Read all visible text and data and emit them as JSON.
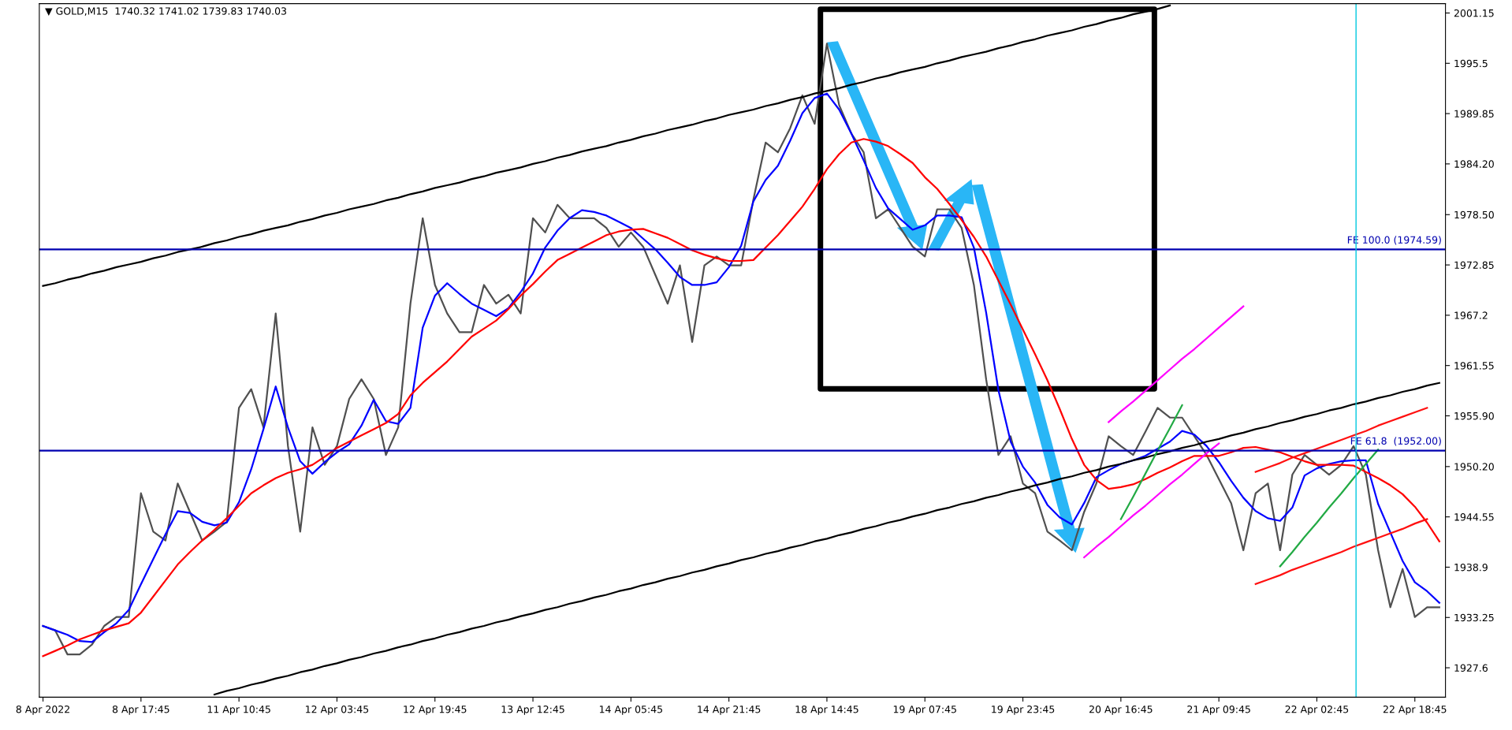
{
  "chart_data": {
    "type": "line",
    "title": "▼ GOLD,M15  1740.32 1741.02 1739.83 1740.03",
    "categories": [
      "8 Apr 2022",
      null,
      null,
      null,
      null,
      null,
      null,
      null,
      "8 Apr 17:45",
      null,
      null,
      null,
      null,
      null,
      null,
      null,
      "11 Apr 10:45",
      null,
      null,
      null,
      null,
      null,
      null,
      null,
      "12 Apr 03:45",
      null,
      null,
      null,
      null,
      null,
      null,
      null,
      "12 Apr 19:45",
      null,
      null,
      null,
      null,
      null,
      null,
      null,
      "13 Apr 12:45",
      null,
      null,
      null,
      null,
      null,
      null,
      null,
      "14 Apr 05:45",
      null,
      null,
      null,
      null,
      null,
      null,
      null,
      "14 Apr 21:45",
      null,
      null,
      null,
      null,
      null,
      null,
      null,
      "18 Apr 14:45",
      null,
      null,
      null,
      null,
      null,
      null,
      null,
      "19 Apr 07:45",
      null,
      null,
      null,
      null,
      null,
      null,
      null,
      "19 Apr 23:45",
      null,
      null,
      null,
      null,
      null,
      null,
      null,
      "20 Apr 16:45",
      null,
      null,
      null,
      null,
      null,
      null,
      null,
      "21 Apr 09:45",
      null,
      null,
      null,
      null,
      null,
      null,
      null,
      "22 Apr 02:45",
      null,
      null,
      null,
      null,
      null,
      null,
      null,
      "22 Apr 18:45",
      null,
      null
    ],
    "ylim": [
      1924.3,
      2002.2
    ],
    "yticks": [
      1927.6,
      1933.25,
      1938.9,
      1944.55,
      {
        "value": 1950.2,
        "label": "1950.20"
      },
      {
        "value": 1955.9,
        "label": "1955.90"
      },
      1961.55,
      1967.2,
      1972.85,
      {
        "value": 1978.5,
        "label": "1978.50"
      },
      {
        "value": 1984.2,
        "label": "1984.20"
      },
      1989.85,
      1995.5,
      2001.15
    ],
    "grid": false,
    "ref_lines": [
      {
        "axis": "y",
        "value": 1974.59,
        "label": "FE 100.0 (1974.59)",
        "color": "#0000b0"
      },
      {
        "axis": "y",
        "value": 1952.0,
        "label": "FE 61.8  (1952.00)",
        "color": "#0000b0"
      }
    ],
    "series": [
      {
        "color": "#505050",
        "values": [
          1932.3,
          1931.8,
          1929.1,
          1929.1,
          1930.2,
          1932.3,
          1933.3,
          1933.3,
          1947.2,
          1942.9,
          1941.9,
          1948.3,
          1945.1,
          1941.9,
          1942.9,
          1944.0,
          1956.8,
          1958.9,
          1954.6,
          1967.4,
          1952.5,
          1942.9,
          1954.6,
          1950.4,
          1952.5,
          1957.8,
          1960.0,
          1957.8,
          1951.5,
          1954.6,
          1968.5,
          1978.1,
          1970.6,
          1967.4,
          1965.3,
          1965.3,
          1970.6,
          1968.5,
          1969.5,
          1967.4,
          1978.1,
          1976.5,
          1979.6,
          1978.1,
          1978.1,
          1978.1,
          1977.0,
          1974.9,
          1976.5,
          1974.9,
          1971.7,
          1968.5,
          1972.8,
          1964.2,
          1972.8,
          1973.8,
          1972.8,
          1972.8,
          1980.2,
          1986.6,
          1985.5,
          1988.2,
          1991.9,
          1988.7,
          1997.7,
          1990.8,
          1987.6,
          1985.5,
          1978.1,
          1979.1,
          1977.0,
          1974.9,
          1973.8,
          1979.1,
          1979.1,
          1977.0,
          1970.6,
          1960.0,
          1951.5,
          1953.6,
          1948.3,
          1947.2,
          1942.9,
          1941.9,
          1940.8,
          1945.1,
          1948.3,
          1953.6,
          1952.5,
          1951.5,
          1954.1,
          1956.8,
          1955.7,
          1955.7,
          1953.6,
          1951.5,
          1948.8,
          1946.1,
          1940.8,
          1947.2,
          1948.3,
          1940.8,
          1949.3,
          1951.5,
          1950.4,
          1949.3,
          1950.4,
          1952.5,
          1949.3,
          1940.8,
          1934.4,
          1938.7,
          1933.3,
          1934.4,
          1934.4
        ]
      },
      {
        "color": "#0000ff",
        "values": [
          1932.3,
          1931.8,
          1931.3,
          1930.6,
          1930.5,
          1931.6,
          1932.6,
          1934.1,
          1937.0,
          1939.8,
          1942.6,
          1945.2,
          1945.0,
          1944.0,
          1943.6,
          1943.9,
          1946.2,
          1949.9,
          1954.4,
          1959.2,
          1954.6,
          1950.8,
          1949.4,
          1950.7,
          1951.8,
          1952.7,
          1954.8,
          1957.7,
          1955.3,
          1955.0,
          1956.8,
          1965.8,
          1969.4,
          1970.8,
          1969.6,
          1968.5,
          1967.8,
          1967.1,
          1968.0,
          1969.8,
          1971.9,
          1974.8,
          1976.7,
          1978.1,
          1979.0,
          1978.8,
          1978.4,
          1977.7,
          1977.0,
          1975.8,
          1974.6,
          1973.1,
          1971.5,
          1970.6,
          1970.6,
          1970.9,
          1972.6,
          1975.0,
          1980.0,
          1982.4,
          1984.0,
          1986.8,
          1989.9,
          1991.6,
          1992.1,
          1990.3,
          1987.6,
          1984.6,
          1981.5,
          1979.2,
          1978.0,
          1976.8,
          1977.3,
          1978.4,
          1978.4,
          1978.2,
          1974.8,
          1967.5,
          1958.8,
          1953.0,
          1950.2,
          1948.4,
          1945.9,
          1944.5,
          1943.7,
          1946.1,
          1949.0,
          1949.8,
          1950.5,
          1950.9,
          1951.4,
          1952.2,
          1953.0,
          1954.2,
          1953.8,
          1952.5,
          1950.7,
          1948.6,
          1946.7,
          1945.2,
          1944.4,
          1944.1,
          1945.6,
          1949.2,
          1950.0,
          1950.5,
          1950.8,
          1950.9,
          1950.9,
          1946.0,
          1942.8,
          1939.6,
          1937.2,
          1936.2,
          1934.9
        ]
      },
      {
        "color": "#ff0000",
        "values": [
          1928.9,
          1929.5,
          1930.1,
          1930.8,
          1931.3,
          1931.8,
          1932.2,
          1932.6,
          1933.8,
          1935.6,
          1937.4,
          1939.2,
          1940.6,
          1941.9,
          1943.1,
          1944.4,
          1945.8,
          1947.2,
          1948.1,
          1948.9,
          1949.5,
          1949.9,
          1950.4,
          1951.3,
          1952.3,
          1953.0,
          1953.7,
          1954.4,
          1955.1,
          1956.1,
          1958.2,
          1959.6,
          1960.8,
          1962.0,
          1963.4,
          1964.8,
          1965.7,
          1966.6,
          1967.9,
          1969.4,
          1970.7,
          1972.1,
          1973.4,
          1974.1,
          1974.8,
          1975.5,
          1976.2,
          1976.6,
          1976.8,
          1976.9,
          1976.4,
          1975.9,
          1975.2,
          1974.5,
          1974.0,
          1973.6,
          1973.3,
          1973.3,
          1973.4,
          1974.8,
          1976.2,
          1977.8,
          1979.4,
          1981.4,
          1983.6,
          1985.3,
          1986.6,
          1987.0,
          1986.7,
          1986.2,
          1985.3,
          1984.3,
          1982.7,
          1981.4,
          1979.7,
          1977.9,
          1976.0,
          1973.8,
          1971.1,
          1968.4,
          1965.6,
          1962.8,
          1959.9,
          1956.7,
          1953.3,
          1950.4,
          1948.7,
          1947.7,
          1947.9,
          1948.2,
          1948.8,
          1949.5,
          1950.1,
          1950.8,
          1951.4,
          1951.4,
          1951.4,
          1951.8,
          1952.3,
          1952.4,
          1952.1,
          1951.8,
          1951.3,
          1950.8,
          1950.4,
          1950.4,
          1950.4,
          1950.3,
          1949.6,
          1948.9,
          1948.1,
          1947.1,
          1945.7,
          1943.9,
          1941.8
        ]
      },
      {
        "color": "#000000",
        "values": [
          1970.5,
          1970.8,
          1971.2,
          1971.5,
          1971.9,
          1972.2,
          1972.6,
          1972.9,
          1973.2,
          1973.6,
          1973.9,
          1974.3,
          1974.6,
          1974.9,
          1975.3,
          1975.6,
          1976.0,
          1976.3,
          1976.7,
          1977.0,
          1977.3,
          1977.7,
          1978.0,
          1978.4,
          1978.7,
          1979.1,
          1979.4,
          1979.7,
          1980.1,
          1980.4,
          1980.8,
          1981.1,
          1981.5,
          1981.8,
          1982.1,
          1982.5,
          1982.8,
          1983.2,
          1983.5,
          1983.8,
          1984.2,
          1984.5,
          1984.9,
          1985.2,
          1985.6,
          1985.9,
          1986.2,
          1986.6,
          1986.9,
          1987.3,
          1987.6,
          1988.0,
          1988.3,
          1988.6,
          1989.0,
          1989.3,
          1989.7,
          1990.0,
          1990.3,
          1990.7,
          1991.0,
          1991.4,
          1991.7,
          1992.1,
          1992.4,
          1992.7,
          1993.1,
          1993.4,
          1993.8,
          1994.1,
          1994.5,
          1994.8,
          1995.1,
          1995.5,
          1995.8,
          1996.2,
          1996.5,
          1996.8,
          1997.2,
          1997.5,
          1997.9,
          1998.2,
          1998.6,
          1998.9,
          1999.2,
          1999.6,
          1999.9,
          2000.3,
          2000.6,
          2001.0,
          2001.3,
          2001.6,
          2002.0,
          null,
          null,
          null,
          null,
          null,
          null,
          null,
          null,
          null,
          null,
          null,
          null,
          null,
          null,
          null,
          null,
          null,
          null,
          null,
          null,
          null,
          null
        ]
      },
      {
        "color": "#000000",
        "values": [
          null,
          null,
          null,
          null,
          null,
          null,
          null,
          null,
          null,
          null,
          null,
          null,
          null,
          null,
          1924.6,
          1925.0,
          1925.3,
          1925.7,
          1926.0,
          1926.4,
          1926.7,
          1927.1,
          1927.4,
          1927.8,
          1928.1,
          1928.5,
          1928.8,
          1929.2,
          1929.5,
          1929.9,
          1930.2,
          1930.6,
          1930.9,
          1931.3,
          1931.6,
          1932.0,
          1932.3,
          1932.7,
          1933.0,
          1933.4,
          1933.7,
          1934.1,
          1934.4,
          1934.8,
          1935.1,
          1935.5,
          1935.8,
          1936.2,
          1936.5,
          1936.9,
          1937.2,
          1937.6,
          1937.9,
          1938.3,
          1938.6,
          1939.0,
          1939.3,
          1939.7,
          1940.0,
          1940.4,
          1940.7,
          1941.1,
          1941.4,
          1941.8,
          1942.1,
          1942.5,
          1942.8,
          1943.2,
          1943.5,
          1943.9,
          1944.2,
          1944.6,
          1944.9,
          1945.3,
          1945.6,
          1946.0,
          1946.3,
          1946.7,
          1947.0,
          1947.4,
          1947.7,
          1948.1,
          1948.4,
          1948.8,
          1949.1,
          1949.5,
          1949.8,
          1950.2,
          1950.5,
          1950.9,
          1951.2,
          1951.6,
          1951.9,
          1952.3,
          1952.6,
          1953.0,
          1953.3,
          1953.7,
          1954.0,
          1954.4,
          1954.7,
          1955.1,
          1955.4,
          1955.8,
          1956.1,
          1956.5,
          1956.8,
          1957.2,
          1957.5,
          1957.9,
          1958.2,
          1958.6,
          1958.9,
          1959.3,
          1959.6
        ]
      },
      {
        "color": "#ff00ff",
        "values": [
          null,
          null,
          null,
          null,
          null,
          null,
          null,
          null,
          null,
          null,
          null,
          null,
          null,
          null,
          null,
          null,
          null,
          null,
          null,
          null,
          null,
          null,
          null,
          null,
          null,
          null,
          null,
          null,
          null,
          null,
          null,
          null,
          null,
          null,
          null,
          null,
          null,
          null,
          null,
          null,
          null,
          null,
          null,
          null,
          null,
          null,
          null,
          null,
          null,
          null,
          null,
          null,
          null,
          null,
          null,
          null,
          null,
          null,
          null,
          null,
          null,
          null,
          null,
          null,
          null,
          null,
          null,
          null,
          null,
          null,
          null,
          null,
          null,
          null,
          null,
          null,
          null,
          null,
          null,
          null,
          null,
          null,
          null,
          null,
          null,
          null,
          null,
          1955.2,
          1956.4,
          1957.5,
          1958.7,
          1959.9,
          1961.1,
          1962.3,
          1963.4,
          1964.6,
          1965.8,
          1967.0,
          1968.2,
          null,
          null,
          null,
          null,
          null,
          null,
          null,
          null,
          null,
          null,
          null,
          null,
          null,
          null,
          null,
          null
        ]
      },
      {
        "color": "#ff00ff",
        "values": [
          null,
          null,
          null,
          null,
          null,
          null,
          null,
          null,
          null,
          null,
          null,
          null,
          null,
          null,
          null,
          null,
          null,
          null,
          null,
          null,
          null,
          null,
          null,
          null,
          null,
          null,
          null,
          null,
          null,
          null,
          null,
          null,
          null,
          null,
          null,
          null,
          null,
          null,
          null,
          null,
          null,
          null,
          null,
          null,
          null,
          null,
          null,
          null,
          null,
          null,
          null,
          null,
          null,
          null,
          null,
          null,
          null,
          null,
          null,
          null,
          null,
          null,
          null,
          null,
          null,
          null,
          null,
          null,
          null,
          null,
          null,
          null,
          null,
          null,
          null,
          null,
          null,
          null,
          null,
          null,
          null,
          null,
          null,
          null,
          null,
          1940.0,
          1941.2,
          1942.3,
          1943.5,
          1944.7,
          1945.8,
          1947.0,
          1948.2,
          1949.3,
          1950.5,
          1951.7,
          1952.8,
          null,
          null,
          null,
          null,
          null,
          null,
          null,
          null,
          null,
          null,
          null,
          null,
          null,
          null,
          null,
          null,
          null,
          null
        ]
      },
      {
        "color": "#22aa44",
        "values": [
          null,
          null,
          null,
          null,
          null,
          null,
          null,
          null,
          null,
          null,
          null,
          null,
          null,
          null,
          null,
          null,
          null,
          null,
          null,
          null,
          null,
          null,
          null,
          null,
          null,
          null,
          null,
          null,
          null,
          null,
          null,
          null,
          null,
          null,
          null,
          null,
          null,
          null,
          null,
          null,
          null,
          null,
          null,
          null,
          null,
          null,
          null,
          null,
          null,
          null,
          null,
          null,
          null,
          null,
          null,
          null,
          null,
          null,
          null,
          null,
          null,
          null,
          null,
          null,
          null,
          null,
          null,
          null,
          null,
          null,
          null,
          null,
          null,
          null,
          null,
          null,
          null,
          null,
          null,
          null,
          null,
          null,
          null,
          null,
          null,
          null,
          null,
          null,
          1944.3,
          1946.8,
          1949.4,
          1952.0,
          1954.5,
          1957.1,
          null,
          null,
          null,
          null,
          null,
          null,
          null,
          null,
          null,
          null,
          null,
          null,
          null,
          null,
          null,
          null,
          null,
          null,
          null,
          null,
          null
        ]
      },
      {
        "color": "#22aa44",
        "values": [
          null,
          null,
          null,
          null,
          null,
          null,
          null,
          null,
          null,
          null,
          null,
          null,
          null,
          null,
          null,
          null,
          null,
          null,
          null,
          null,
          null,
          null,
          null,
          null,
          null,
          null,
          null,
          null,
          null,
          null,
          null,
          null,
          null,
          null,
          null,
          null,
          null,
          null,
          null,
          null,
          null,
          null,
          null,
          null,
          null,
          null,
          null,
          null,
          null,
          null,
          null,
          null,
          null,
          null,
          null,
          null,
          null,
          null,
          null,
          null,
          null,
          null,
          null,
          null,
          null,
          null,
          null,
          null,
          null,
          null,
          null,
          null,
          null,
          null,
          null,
          null,
          null,
          null,
          null,
          null,
          null,
          null,
          null,
          null,
          null,
          null,
          null,
          null,
          null,
          null,
          null,
          null,
          null,
          null,
          null,
          null,
          null,
          null,
          null,
          null,
          null,
          1939.0,
          1940.6,
          1942.3,
          1943.9,
          1945.6,
          1947.2,
          1948.9,
          1950.5,
          1952.1,
          null,
          null,
          null,
          null,
          null
        ]
      },
      {
        "color": "#ff1010",
        "values": [
          null,
          null,
          null,
          null,
          null,
          null,
          null,
          null,
          null,
          null,
          null,
          null,
          null,
          null,
          null,
          null,
          null,
          null,
          null,
          null,
          null,
          null,
          null,
          null,
          null,
          null,
          null,
          null,
          null,
          null,
          null,
          null,
          null,
          null,
          null,
          null,
          null,
          null,
          null,
          null,
          null,
          null,
          null,
          null,
          null,
          null,
          null,
          null,
          null,
          null,
          null,
          null,
          null,
          null,
          null,
          null,
          null,
          null,
          null,
          null,
          null,
          null,
          null,
          null,
          null,
          null,
          null,
          null,
          null,
          null,
          null,
          null,
          null,
          null,
          null,
          null,
          null,
          null,
          null,
          null,
          null,
          null,
          null,
          null,
          null,
          null,
          null,
          null,
          null,
          null,
          null,
          null,
          null,
          null,
          null,
          null,
          null,
          null,
          null,
          1949.6,
          1950.1,
          1950.6,
          1951.2,
          1951.7,
          1952.2,
          1952.7,
          1953.2,
          1953.7,
          1954.2,
          1954.8,
          1955.3,
          1955.8,
          1956.3,
          1956.8,
          null
        ]
      },
      {
        "color": "#ff1010",
        "values": [
          null,
          null,
          null,
          null,
          null,
          null,
          null,
          null,
          null,
          null,
          null,
          null,
          null,
          null,
          null,
          null,
          null,
          null,
          null,
          null,
          null,
          null,
          null,
          null,
          null,
          null,
          null,
          null,
          null,
          null,
          null,
          null,
          null,
          null,
          null,
          null,
          null,
          null,
          null,
          null,
          null,
          null,
          null,
          null,
          null,
          null,
          null,
          null,
          null,
          null,
          null,
          null,
          null,
          null,
          null,
          null,
          null,
          null,
          null,
          null,
          null,
          null,
          null,
          null,
          null,
          null,
          null,
          null,
          null,
          null,
          null,
          null,
          null,
          null,
          null,
          null,
          null,
          null,
          null,
          null,
          null,
          null,
          null,
          null,
          null,
          null,
          null,
          null,
          null,
          null,
          null,
          null,
          null,
          null,
          null,
          null,
          null,
          null,
          null,
          1937.0,
          1937.5,
          1938.0,
          1938.6,
          1939.1,
          1939.6,
          1940.1,
          1940.6,
          1941.2,
          1941.7,
          1942.2,
          1942.7,
          1943.2,
          1943.8,
          1944.3,
          null
        ]
      }
    ]
  }
}
